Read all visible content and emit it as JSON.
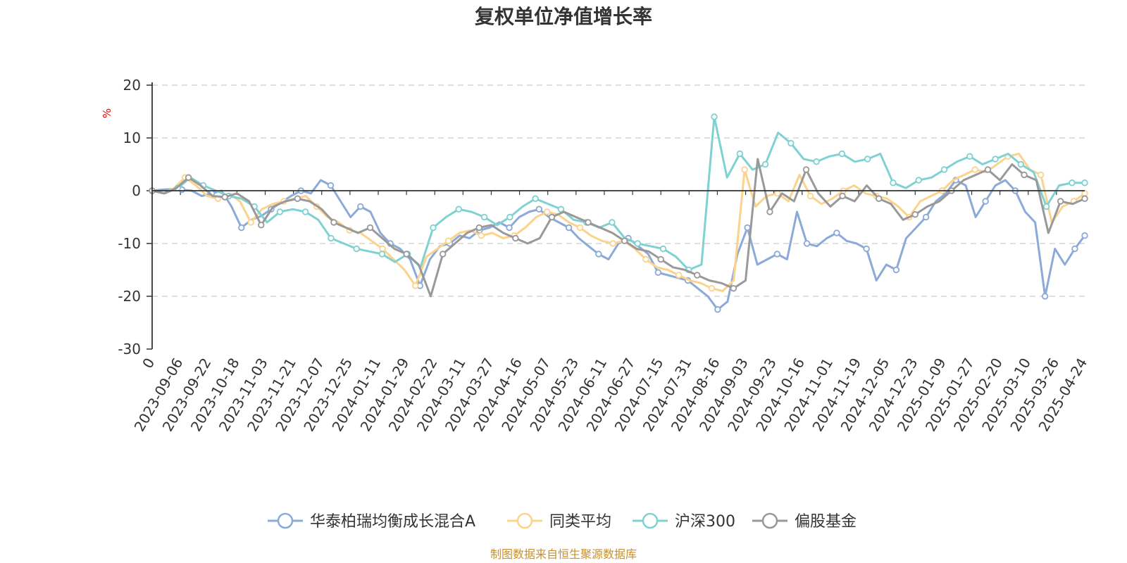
{
  "chart_data": {
    "type": "line",
    "title": "复权单位净值增长率",
    "ylabel": "%",
    "ylim": [
      -30,
      20
    ],
    "yticks": [
      20,
      10,
      0,
      -10,
      -20,
      -30
    ],
    "grid": true,
    "legend_position": "bottom",
    "source_text": "制图数据来自恒生聚源数据库",
    "x_ticks": [
      "0",
      "2023-09-06",
      "2023-09-22",
      "2023-10-18",
      "2023-11-03",
      "2023-11-21",
      "2023-12-07",
      "2023-12-25",
      "2024-01-11",
      "2024-01-29",
      "2024-02-22",
      "2024-03-11",
      "2024-03-27",
      "2024-04-16",
      "2024-05-07",
      "2024-05-23",
      "2024-06-11",
      "2024-06-27",
      "2024-07-15",
      "2024-07-31",
      "2024-08-16",
      "2024-09-03",
      "2024-09-23",
      "2024-10-16",
      "2024-11-01",
      "2024-11-19",
      "2024-12-05",
      "2024-12-23",
      "2025-01-09",
      "2025-01-27",
      "2025-02-20",
      "2025-03-10",
      "2025-03-26",
      "2025-04-24"
    ],
    "series": [
      {
        "name": "华泰柏瑞均衡成长混合A",
        "color": "#8caad8",
        "values": [
          0,
          0.2,
          0.3,
          0.2,
          0,
          -1,
          -0.5,
          0,
          -3,
          -7,
          -5.5,
          -4.8,
          -3.5,
          -2.2,
          -1,
          0,
          -0.5,
          2,
          1,
          -2,
          -5,
          -3,
          -4,
          -8,
          -10,
          -11,
          -13,
          -18,
          -13,
          -10.5,
          -10,
          -8.5,
          -9,
          -7.5,
          -7,
          -6,
          -7,
          -5,
          -4,
          -3.5,
          -5,
          -6,
          -7,
          -9,
          -10.5,
          -12,
          -13,
          -10,
          -9,
          -10.5,
          -12,
          -15.5,
          -16,
          -16.5,
          -17,
          -18.5,
          -20,
          -22.5,
          -21,
          -12,
          -7,
          -14,
          -13,
          -12,
          -13,
          -4,
          -10,
          -10.5,
          -9,
          -8,
          -9.5,
          -10,
          -11,
          -17,
          -14,
          -15,
          -9,
          -7,
          -5,
          -2,
          -0.5,
          2,
          1,
          -5,
          -2,
          1,
          2,
          0,
          -4,
          -6,
          -20,
          -11,
          -14,
          -11,
          -8.5
        ]
      },
      {
        "name": "同类平均",
        "color": "#fcd38c",
        "values": [
          0,
          -0.5,
          0.5,
          2.5,
          1,
          -1,
          -1.5,
          -0.5,
          -2,
          -6,
          -3.5,
          -2.5,
          -2,
          -1.5,
          -1,
          -3,
          -5,
          -6,
          -7.5,
          -8,
          -9.5,
          -11,
          -13,
          -15,
          -18,
          -12.5,
          -11,
          -9.5,
          -8,
          -7.5,
          -8.5,
          -8,
          -9,
          -8.5,
          -7,
          -5,
          -4,
          -4.5,
          -6,
          -7,
          -8.5,
          -9.5,
          -10,
          -9.5,
          -11,
          -13,
          -14.5,
          -15,
          -16,
          -17,
          -17.5,
          -18.5,
          -19,
          -17,
          4,
          -3,
          -1,
          -0.5,
          -2,
          3,
          -1,
          -2.5,
          -1.5,
          0,
          1,
          -0.5,
          -1,
          -1.5,
          -3,
          -5,
          -2,
          -1,
          0,
          2,
          3,
          4,
          3.5,
          5,
          6.5,
          7,
          4,
          3,
          -6,
          -3,
          -2,
          -0.5
        ]
      },
      {
        "name": "沪深300",
        "color": "#80d1d1",
        "values": [
          0,
          -0.5,
          0.5,
          2.5,
          1,
          0,
          -1,
          -1.5,
          -3,
          -6,
          -4,
          -3.5,
          -4,
          -5.5,
          -9,
          -10,
          -11,
          -11.5,
          -12,
          -13.5,
          -12,
          -14.5,
          -7,
          -5,
          -3.5,
          -4,
          -5,
          -6.5,
          -5,
          -3,
          -1.5,
          -2.5,
          -3.5,
          -5.5,
          -6,
          -7,
          -6,
          -9,
          -10,
          -10.5,
          -11,
          -12.5,
          -15,
          -14,
          14,
          2.5,
          7,
          4,
          5,
          11,
          9,
          6,
          5.5,
          6.5,
          7,
          5.5,
          6,
          7,
          1.5,
          0.5,
          2,
          2.5,
          4,
          5.5,
          6.5,
          5,
          6,
          7,
          5,
          3.5,
          -3,
          1,
          1.5,
          1.5
        ]
      },
      {
        "name": "偏股基金",
        "color": "#999999",
        "values": [
          0,
          -0.5,
          0.5,
          2.5,
          1,
          -1,
          -1.2,
          -0.5,
          -2,
          -6.5,
          -3,
          -2,
          -1.5,
          -2,
          -3.5,
          -6,
          -7,
          -8,
          -7,
          -9,
          -11,
          -12,
          -14,
          -20,
          -12,
          -10,
          -8,
          -7,
          -6.5,
          -8,
          -9,
          -10,
          -9,
          -5,
          -4,
          -5,
          -6,
          -7,
          -8,
          -9.5,
          -11,
          -11.5,
          -13,
          -14.5,
          -15,
          -16,
          -17,
          -17.5,
          -18.5,
          -17,
          6,
          -4,
          -0.5,
          -2,
          4,
          -0.5,
          -3,
          -1,
          -2,
          1,
          -1.5,
          -2.5,
          -5.5,
          -4.5,
          -3,
          -2,
          0,
          2,
          3,
          4,
          2,
          5,
          3,
          2,
          -8,
          -2,
          -2.5,
          -1.5
        ]
      }
    ]
  }
}
